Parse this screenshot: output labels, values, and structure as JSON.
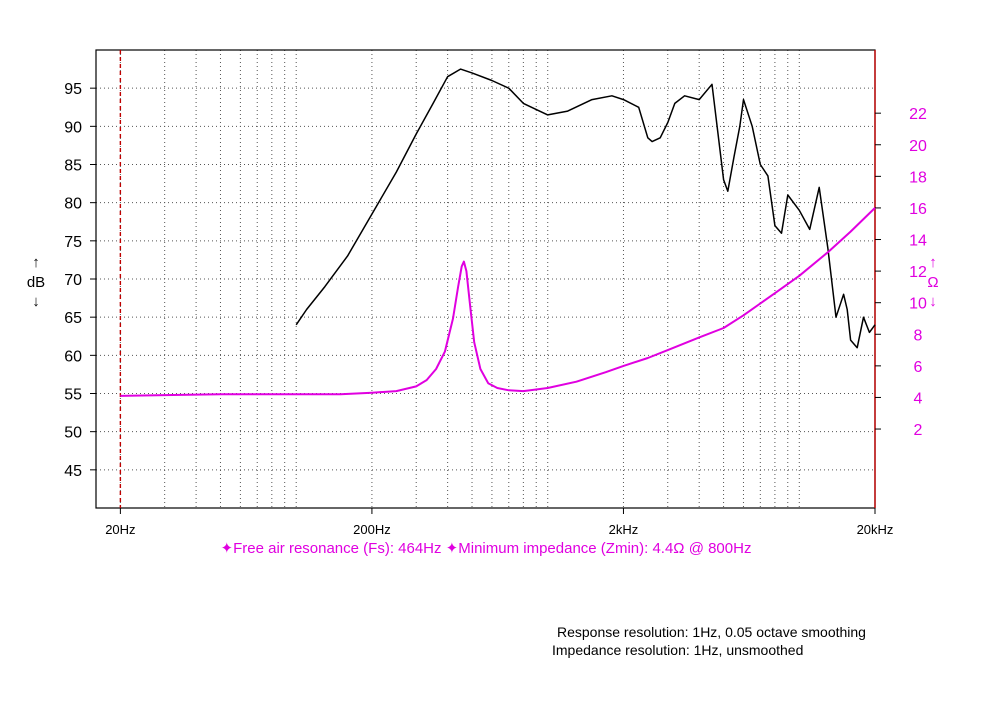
{
  "chart_data": {
    "type": "line",
    "x_scale": "log",
    "xlim": [
      16,
      20000
    ],
    "x_ticks": [
      {
        "value": 20,
        "label": "20Hz"
      },
      {
        "value": 200,
        "label": "200Hz"
      },
      {
        "value": 2000,
        "label": "2kHz"
      },
      {
        "value": 20000,
        "label": "20kHz"
      }
    ],
    "y_left": {
      "label": "dB",
      "arrow_up": "↑",
      "arrow_down": "↓",
      "range": [
        40,
        100
      ],
      "ticks": [
        45,
        50,
        55,
        60,
        65,
        70,
        75,
        80,
        85,
        90,
        95
      ],
      "color": "#000000"
    },
    "y_right": {
      "label": "Ω",
      "arrow_up": "↑",
      "arrow_down": "↓",
      "range": [
        -3,
        26
      ],
      "ticks": [
        2,
        4,
        6,
        8,
        10,
        12,
        14,
        16,
        18,
        20,
        22
      ],
      "color": "#e000e0"
    },
    "grid": "dotted",
    "markers": [
      {
        "x": 20,
        "style": "dashed",
        "color": "#c00000"
      },
      {
        "x": 20000,
        "style": "solid",
        "color": "#c00000"
      }
    ],
    "series": [
      {
        "axis": "left",
        "color": "#000000",
        "x": [
          100,
          110,
          130,
          160,
          200,
          250,
          300,
          350,
          400,
          450,
          500,
          600,
          700,
          800,
          1000,
          1200,
          1500,
          1800,
          2000,
          2300,
          2500,
          2600,
          2800,
          3000,
          3200,
          3500,
          4000,
          4500,
          5000,
          5200,
          5500,
          5800,
          6000,
          6500,
          7000,
          7500,
          8000,
          8500,
          9000,
          10000,
          11000,
          12000,
          13000,
          14000,
          15000,
          15500,
          16000,
          17000,
          18000,
          19000,
          20000
        ],
        "values": [
          64,
          66,
          69,
          73,
          78.5,
          84,
          89,
          93,
          96.5,
          97.5,
          97,
          96,
          95,
          93,
          91.5,
          92,
          93.5,
          94,
          93.5,
          92.5,
          88.5,
          88,
          88.5,
          90.5,
          93,
          94,
          93.5,
          95.5,
          83,
          81.5,
          86,
          90,
          93.5,
          90,
          85,
          83.5,
          77,
          76,
          81,
          79,
          76.5,
          82,
          74,
          65,
          68,
          66,
          62,
          61,
          65,
          63,
          64
        ]
      },
      {
        "axis": "right",
        "color": "#e000e0",
        "x": [
          20,
          30,
          50,
          100,
          150,
          200,
          250,
          300,
          330,
          360,
          390,
          420,
          440,
          455,
          464,
          475,
          490,
          510,
          540,
          580,
          630,
          700,
          800,
          1000,
          1300,
          1700,
          2000,
          2500,
          3000,
          4000,
          5000,
          6000,
          8000,
          10000,
          13000,
          16000,
          20000
        ],
        "values": [
          4.1,
          4.15,
          4.2,
          4.2,
          4.2,
          4.3,
          4.4,
          4.7,
          5.1,
          5.8,
          6.9,
          9.0,
          11.0,
          12.3,
          12.6,
          12.0,
          10.0,
          7.5,
          5.8,
          4.9,
          4.6,
          4.45,
          4.4,
          4.6,
          5.0,
          5.6,
          6.0,
          6.5,
          7.0,
          7.8,
          8.4,
          9.2,
          10.6,
          11.7,
          13.2,
          14.5,
          16.0
        ]
      }
    ],
    "annotation": "✦Free air resonance (Fs): 464Hz ✦Minimum impedance (Zmin): 4.4Ω @ 800Hz"
  },
  "footnotes": {
    "line1": "Response resolution: 1Hz, 0.05 octave smoothing",
    "line2": "Impedance resolution: 1Hz, unsmoothed"
  },
  "colors": {
    "impedance": "#e000e0",
    "marker": "#c00000",
    "grid": "#555555"
  }
}
